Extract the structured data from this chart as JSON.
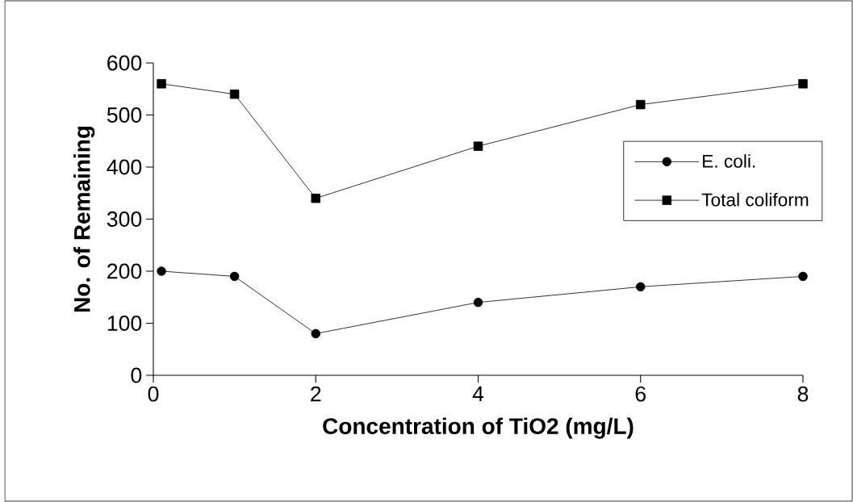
{
  "chart_data": {
    "type": "line",
    "xlabel": "Concentration of TiO2 (mg/L)",
    "ylabel": "No. of Remaining",
    "x": [
      0.1,
      1,
      2,
      4,
      6,
      8
    ],
    "series": [
      {
        "name": "E. coli.",
        "color": "#000000",
        "marker": "circle",
        "values": [
          200,
          190,
          80,
          140,
          170,
          190
        ]
      },
      {
        "name": "Total coliform",
        "color": "#000000",
        "marker": "square",
        "values": [
          560,
          540,
          340,
          440,
          520,
          560
        ]
      }
    ],
    "xlim": [
      0,
      8
    ],
    "xticks": [
      0,
      2,
      4,
      6,
      8
    ],
    "ylim": [
      0,
      600
    ],
    "yticks": [
      0,
      100,
      200,
      300,
      400,
      500,
      600
    ],
    "grid": false,
    "legend": "right",
    "line_style": "solid"
  }
}
